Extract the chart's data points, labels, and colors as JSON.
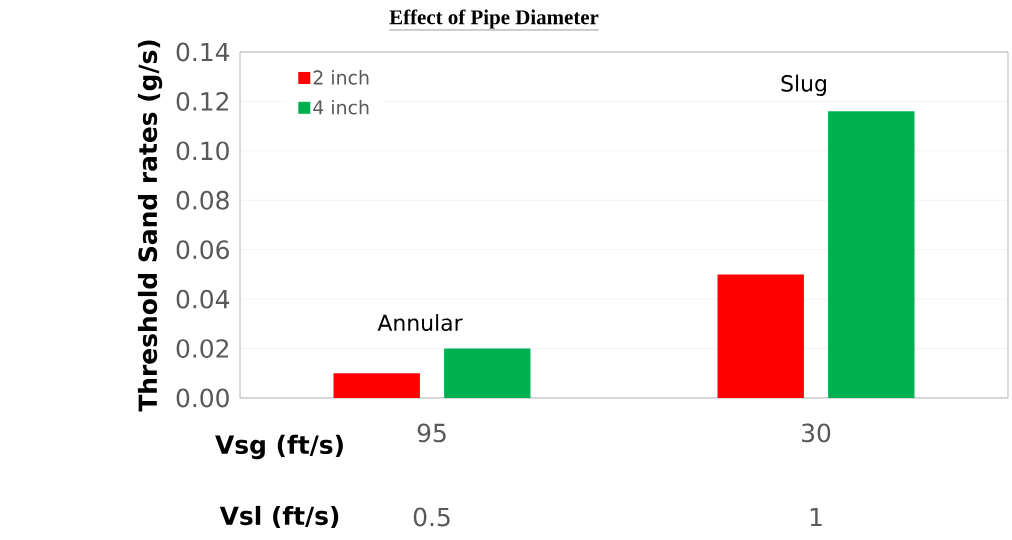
{
  "chart_data": {
    "type": "bar",
    "title": "Effect of Pipe Diameter",
    "ylabel": "Threshold Sand rates (g/s)",
    "categories": [
      "95",
      "30"
    ],
    "series": [
      {
        "name": "2 inch",
        "color": "#ff0000",
        "values": [
          0.01,
          0.05
        ]
      },
      {
        "name": "4 inch",
        "color": "#00b050",
        "values": [
          0.02,
          0.116
        ]
      }
    ],
    "ylim": [
      0,
      0.14
    ],
    "yticks": [
      {
        "value": 0,
        "label": "0.00"
      },
      {
        "value": 0.02,
        "label": "0.02"
      },
      {
        "value": 0.04,
        "label": "0.04"
      },
      {
        "value": 0.06,
        "label": "0.06"
      },
      {
        "value": 0.08,
        "label": "0.08"
      },
      {
        "value": 0.1,
        "label": "0.10"
      },
      {
        "value": 0.12,
        "label": "0.12"
      },
      {
        "value": 0.14,
        "label": "0.14"
      }
    ],
    "grid": "y",
    "legend": "top left",
    "annotations": [
      "Annular",
      "Slug",
      "Vsg (ft/s)",
      "Vsl (ft/s)",
      "0.5",
      "1"
    ]
  }
}
